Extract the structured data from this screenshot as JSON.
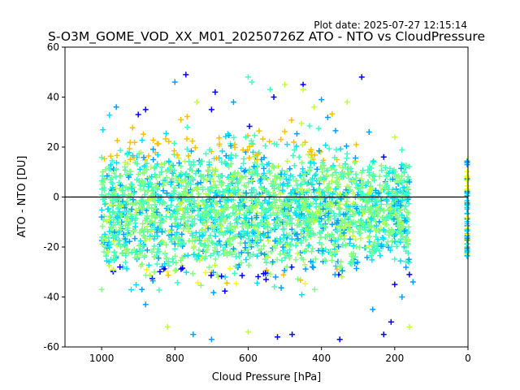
{
  "chart_data": {
    "type": "scatter",
    "title": "S-O3M_GOME_VOD_XX_M01_20250726Z ATO - NTO vs CloudPressure",
    "plot_date": "Plot date: 2025-07-27 12:15:14",
    "xlabel": "Cloud Pressure [hPa]",
    "ylabel": "ATO - NTO [DU]",
    "xlim": [
      1100,
      0
    ],
    "ylim": [
      -60,
      60
    ],
    "x_reversed": true,
    "xticks": [
      1000,
      800,
      600,
      400,
      200,
      0
    ],
    "yticks": [
      60,
      40,
      20,
      0,
      -20,
      -40,
      -60
    ],
    "marker": "plus",
    "reference_line_y": 0,
    "grid": false,
    "legend": "none",
    "color_scale": [
      "#0000ff",
      "#00a0ff",
      "#00e0ff",
      "#40ffc0",
      "#80ff80",
      "#c0ff40",
      "#ffff00",
      "#ffc000"
    ],
    "description_points": {
      "main_cloud": {
        "x_range": [
          1000,
          160
        ],
        "y_center": -5,
        "y_spread": [
          -35,
          25
        ]
      },
      "edge_cluster_x0": {
        "x": 0,
        "y_range": [
          -25,
          15
        ]
      }
    },
    "sample_outliers": [
      {
        "x": 960,
        "y": 36
      },
      {
        "x": 900,
        "y": 33
      },
      {
        "x": 880,
        "y": 35
      },
      {
        "x": 800,
        "y": 46
      },
      {
        "x": 770,
        "y": 49
      },
      {
        "x": 690,
        "y": 42
      },
      {
        "x": 600,
        "y": 48
      },
      {
        "x": 590,
        "y": 46
      },
      {
        "x": 540,
        "y": 43
      },
      {
        "x": 530,
        "y": 40
      },
      {
        "x": 500,
        "y": 45
      },
      {
        "x": 450,
        "y": 45
      },
      {
        "x": 450,
        "y": 43
      },
      {
        "x": 290,
        "y": 48
      },
      {
        "x": 330,
        "y": 38
      },
      {
        "x": 420,
        "y": 36
      },
      {
        "x": 400,
        "y": 39
      },
      {
        "x": 640,
        "y": 38
      },
      {
        "x": 700,
        "y": 35
      },
      {
        "x": 740,
        "y": 38
      },
      {
        "x": 270,
        "y": 26
      },
      {
        "x": 230,
        "y": 16
      },
      {
        "x": 200,
        "y": 24
      },
      {
        "x": 160,
        "y": 6
      },
      {
        "x": 200,
        "y": -35
      },
      {
        "x": 180,
        "y": -40
      },
      {
        "x": 160,
        "y": -31
      },
      {
        "x": 150,
        "y": -34
      },
      {
        "x": 160,
        "y": -52
      },
      {
        "x": 210,
        "y": -50
      },
      {
        "x": 230,
        "y": -55
      },
      {
        "x": 260,
        "y": -45
      },
      {
        "x": 350,
        "y": -57
      },
      {
        "x": 480,
        "y": -55
      },
      {
        "x": 520,
        "y": -56
      },
      {
        "x": 600,
        "y": -54
      },
      {
        "x": 700,
        "y": -57
      },
      {
        "x": 750,
        "y": -55
      },
      {
        "x": 820,
        "y": -52
      },
      {
        "x": 880,
        "y": -43
      },
      {
        "x": 890,
        "y": -37
      },
      {
        "x": 950,
        "y": -28
      },
      {
        "x": 990,
        "y": -20
      },
      {
        "x": 1000,
        "y": -8
      }
    ]
  }
}
